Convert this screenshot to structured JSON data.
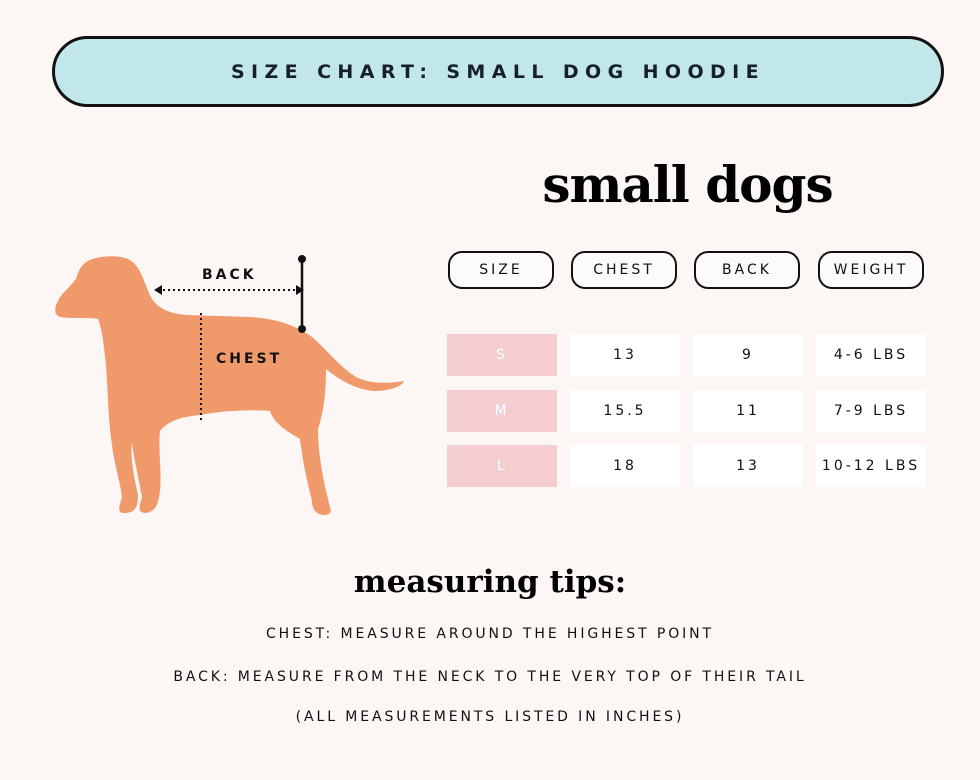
{
  "banner": {
    "title": "SIZE CHART: SMALL DOG HOODIE"
  },
  "section_title": "small dogs",
  "diagram": {
    "back_label": "BACK",
    "chest_label": "CHEST",
    "dog_color": "#f09a6b"
  },
  "table": {
    "headers": [
      "SIZE",
      "CHEST",
      "BACK",
      "WEIGHT"
    ],
    "rows": [
      {
        "size": "S",
        "chest": "13",
        "back": "9",
        "weight": "4-6 LBS"
      },
      {
        "size": "M",
        "chest": "15.5",
        "back": "11",
        "weight": "7-9 LBS"
      },
      {
        "size": "L",
        "chest": "18",
        "back": "13",
        "weight": "10-12 LBS"
      }
    ]
  },
  "tips": {
    "title": "measuring tips:",
    "lines": [
      "CHEST: MEASURE AROUND THE  HIGHEST POINT",
      "BACK: MEASURE FROM THE NECK TO THE VERY TOP OF THEIR TAIL",
      "(ALL MEASUREMENTS LISTED IN INCHES)"
    ]
  }
}
